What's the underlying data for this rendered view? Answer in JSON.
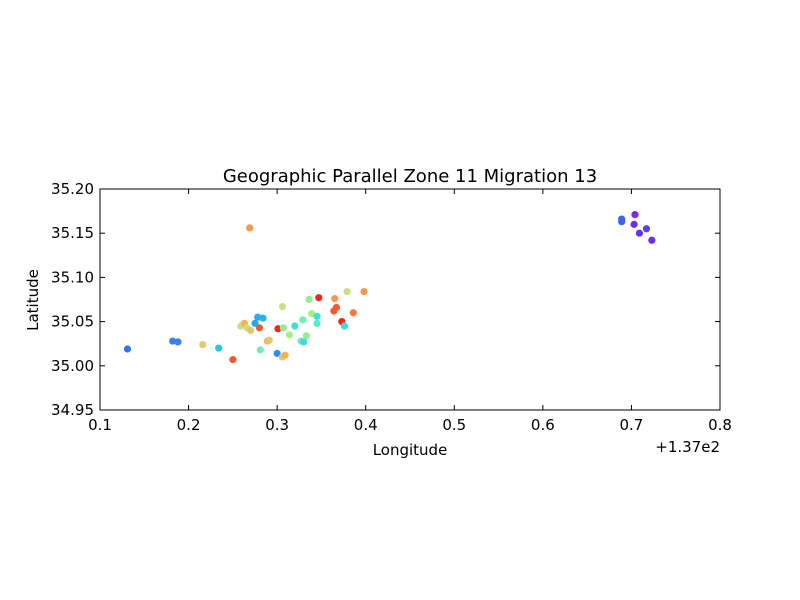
{
  "chart_data": {
    "type": "scatter",
    "title": "Geographic Parallel Zone 11 Migration 13",
    "xlabel": "Longitude",
    "ylabel": "Latitude",
    "x_offset_label": "+1.37e2",
    "xlim": [
      0.1,
      0.8
    ],
    "ylim": [
      34.95,
      35.2
    ],
    "xticks": [
      "0.1",
      "0.2",
      "0.3",
      "0.4",
      "0.5",
      "0.6",
      "0.7",
      "0.8"
    ],
    "yticks": [
      "34.95",
      "35.00",
      "35.05",
      "35.10",
      "35.15",
      "35.20"
    ],
    "grid": false,
    "points": [
      {
        "x": 0.131,
        "y": 35.019,
        "color": "#3a6ff0"
      },
      {
        "x": 0.182,
        "y": 35.028,
        "color": "#3a80f0"
      },
      {
        "x": 0.188,
        "y": 35.027,
        "color": "#3a80f0"
      },
      {
        "x": 0.216,
        "y": 35.024,
        "color": "#e0c870"
      },
      {
        "x": 0.234,
        "y": 35.02,
        "color": "#28c8e0"
      },
      {
        "x": 0.25,
        "y": 35.007,
        "color": "#f05a30"
      },
      {
        "x": 0.259,
        "y": 35.045,
        "color": "#c8e080"
      },
      {
        "x": 0.263,
        "y": 35.048,
        "color": "#f8b050"
      },
      {
        "x": 0.266,
        "y": 35.043,
        "color": "#c8e080"
      },
      {
        "x": 0.27,
        "y": 35.04,
        "color": "#e0c870"
      },
      {
        "x": 0.269,
        "y": 35.156,
        "color": "#f89848"
      },
      {
        "x": 0.275,
        "y": 35.048,
        "color": "#28a8f0"
      },
      {
        "x": 0.278,
        "y": 35.055,
        "color": "#28b0f0"
      },
      {
        "x": 0.28,
        "y": 35.043,
        "color": "#f05a30"
      },
      {
        "x": 0.281,
        "y": 35.018,
        "color": "#70f0b0"
      },
      {
        "x": 0.284,
        "y": 35.054,
        "color": "#28b0f0"
      },
      {
        "x": 0.289,
        "y": 35.028,
        "color": "#f8b050"
      },
      {
        "x": 0.291,
        "y": 35.029,
        "color": "#e0c870"
      },
      {
        "x": 0.3,
        "y": 35.014,
        "color": "#2890f0"
      },
      {
        "x": 0.301,
        "y": 35.042,
        "color": "#f02818"
      },
      {
        "x": 0.306,
        "y": 35.067,
        "color": "#c8e080"
      },
      {
        "x": 0.306,
        "y": 35.01,
        "color": "#e0c870"
      },
      {
        "x": 0.307,
        "y": 35.043,
        "color": "#90f090"
      },
      {
        "x": 0.309,
        "y": 35.012,
        "color": "#f8b050"
      },
      {
        "x": 0.314,
        "y": 35.035,
        "color": "#a8f080"
      },
      {
        "x": 0.32,
        "y": 35.045,
        "color": "#40e0d0"
      },
      {
        "x": 0.327,
        "y": 35.028,
        "color": "#70f0b0"
      },
      {
        "x": 0.33,
        "y": 35.027,
        "color": "#40d8e0"
      },
      {
        "x": 0.329,
        "y": 35.052,
        "color": "#70f0b0"
      },
      {
        "x": 0.333,
        "y": 35.034,
        "color": "#90f090"
      },
      {
        "x": 0.336,
        "y": 35.075,
        "color": "#90f090"
      },
      {
        "x": 0.339,
        "y": 35.059,
        "color": "#a8f080"
      },
      {
        "x": 0.345,
        "y": 35.056,
        "color": "#40e0d0"
      },
      {
        "x": 0.345,
        "y": 35.048,
        "color": "#50f0c0"
      },
      {
        "x": 0.347,
        "y": 35.077,
        "color": "#f02818"
      },
      {
        "x": 0.365,
        "y": 35.076,
        "color": "#f89848"
      },
      {
        "x": 0.364,
        "y": 35.062,
        "color": "#f05a30"
      },
      {
        "x": 0.367,
        "y": 35.066,
        "color": "#f05a30"
      },
      {
        "x": 0.373,
        "y": 35.05,
        "color": "#f02818"
      },
      {
        "x": 0.376,
        "y": 35.045,
        "color": "#40d8e0"
      },
      {
        "x": 0.379,
        "y": 35.084,
        "color": "#c8e080"
      },
      {
        "x": 0.386,
        "y": 35.06,
        "color": "#f87840"
      },
      {
        "x": 0.398,
        "y": 35.084,
        "color": "#f89848"
      },
      {
        "x": 0.689,
        "y": 35.166,
        "color": "#4060f0"
      },
      {
        "x": 0.689,
        "y": 35.163,
        "color": "#4060f0"
      },
      {
        "x": 0.703,
        "y": 35.16,
        "color": "#6a30f0"
      },
      {
        "x": 0.704,
        "y": 35.171,
        "color": "#7a28f0"
      },
      {
        "x": 0.709,
        "y": 35.15,
        "color": "#6a30f0"
      },
      {
        "x": 0.717,
        "y": 35.155,
        "color": "#5a40f0"
      },
      {
        "x": 0.723,
        "y": 35.142,
        "color": "#6a30f0"
      }
    ]
  }
}
